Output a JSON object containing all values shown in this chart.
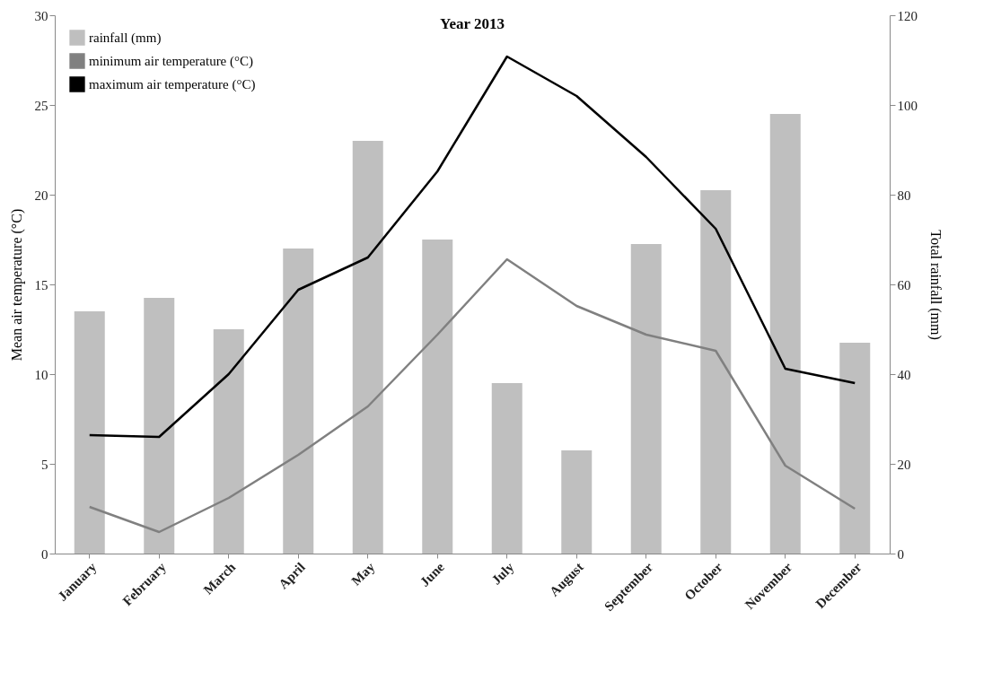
{
  "chart_data": {
    "type": "bar",
    "title": "Year 2013",
    "categories": [
      "January",
      "February",
      "March",
      "April",
      "May",
      "June",
      "July",
      "August",
      "September",
      "October",
      "November",
      "December"
    ],
    "series": [
      {
        "name": "rainfall (mm)",
        "axis": "y2",
        "color": "#bfbfbf",
        "values": [
          54,
          57,
          50,
          68,
          92,
          70,
          38,
          23,
          69,
          81,
          98,
          47
        ]
      },
      {
        "name": "minimum air temperature (°C)",
        "type": "line",
        "color": "#808080",
        "values": [
          2.6,
          1.2,
          3.1,
          5.5,
          8.2,
          12.2,
          16.4,
          13.8,
          12.2,
          11.3,
          4.9,
          2.5
        ]
      },
      {
        "name": "maximum air temperature (°C)",
        "type": "line",
        "color": "#000000",
        "values": [
          6.6,
          6.5,
          10.0,
          14.7,
          16.5,
          21.3,
          27.7,
          25.5,
          22.1,
          18.1,
          10.3,
          9.5
        ]
      }
    ],
    "ylabel": "Mean air temperature (°C)",
    "y2label": "Total rainfall (mm)",
    "ylim": [
      0,
      30
    ],
    "yticks": [
      0,
      5,
      10,
      15,
      20,
      25,
      30
    ],
    "y2lim": [
      0,
      120
    ],
    "y2ticks": [
      0,
      20,
      40,
      60,
      80,
      100,
      120
    ],
    "legend": "top left",
    "grid": false
  }
}
